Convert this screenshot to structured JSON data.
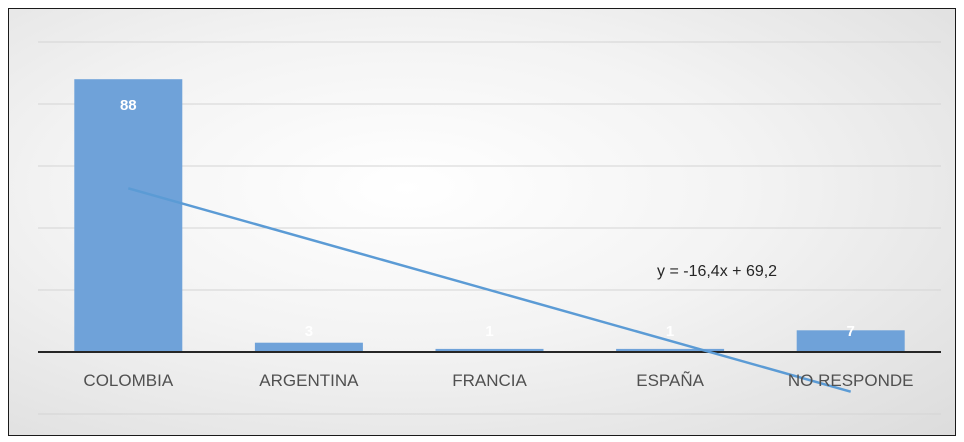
{
  "chart_data": {
    "type": "bar",
    "categories": [
      "COLOMBIA",
      "ARGENTINA",
      "FRANCIA",
      "ESPAÑA",
      "NO RESPONDE"
    ],
    "values": [
      88,
      3,
      1,
      1,
      7
    ],
    "data_labels": [
      "88",
      "3",
      "1",
      "1",
      "7"
    ],
    "ylim": [
      -20,
      100
    ],
    "grid": true,
    "legend": "none",
    "trendline": {
      "type": "linear",
      "slope": -16.4,
      "intercept": 69.2,
      "equation_label": "y = -16,4x + 69,2"
    },
    "colors": {
      "bar": "#6fa2d9",
      "trendline": "#5b9bd5",
      "gridline": "#d4d4d4",
      "axis": "#262626"
    }
  }
}
